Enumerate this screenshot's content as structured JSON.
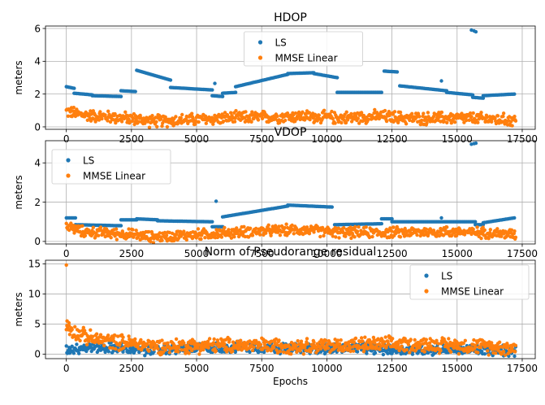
{
  "chart_data": [
    {
      "type": "scatter",
      "title": "HDOP",
      "xlabel": "",
      "ylabel": "meters",
      "xlim": [
        -800,
        18000
      ],
      "ylim": [
        -0.15,
        6.15
      ],
      "xticks": [
        0,
        2500,
        5000,
        7500,
        10000,
        12500,
        15000,
        17500
      ],
      "yticks": [
        0,
        2,
        4,
        6
      ],
      "grid": true,
      "legend": "upper-center",
      "series": [
        {
          "name": "LS",
          "color": "#1f77b4",
          "segments": [
            {
              "x": [
                0,
                300
              ],
              "y": [
                2.45,
                2.35
              ]
            },
            {
              "x": [
                300,
                1000
              ],
              "y": [
                2.05,
                1.95
              ]
            },
            {
              "x": [
                1000,
                2100
              ],
              "y": [
                1.9,
                1.85
              ]
            },
            {
              "x": [
                2100,
                2650
              ],
              "y": [
                2.2,
                2.15
              ]
            },
            {
              "x": [
                2700,
                4000
              ],
              "y": [
                3.45,
                2.85
              ]
            },
            {
              "x": [
                4000,
                5600
              ],
              "y": [
                2.4,
                2.25
              ]
            },
            {
              "x": [
                5600,
                6000
              ],
              "y": [
                1.9,
                1.85
              ]
            },
            {
              "x": [
                6000,
                6500
              ],
              "y": [
                2.05,
                2.1
              ]
            },
            {
              "x": [
                6500,
                8500
              ],
              "y": [
                2.45,
                3.2
              ]
            },
            {
              "x": [
                8500,
                9500
              ],
              "y": [
                3.25,
                3.3
              ]
            },
            {
              "x": [
                9500,
                10400
              ],
              "y": [
                3.25,
                3.0
              ]
            },
            {
              "x": [
                10400,
                12100
              ],
              "y": [
                2.1,
                2.1
              ]
            },
            {
              "x": [
                12200,
                12700
              ],
              "y": [
                3.4,
                3.35
              ]
            },
            {
              "x": [
                12800,
                14600
              ],
              "y": [
                2.5,
                2.2
              ]
            },
            {
              "x": [
                14600,
                15600
              ],
              "y": [
                2.1,
                1.95
              ]
            },
            {
              "x": [
                15600,
                16000
              ],
              "y": [
                1.8,
                1.75
              ]
            },
            {
              "x": [
                16000,
                17200
              ],
              "y": [
                1.9,
                2.0
              ]
            }
          ],
          "points": [
            {
              "x": 5700,
              "y": 2.65
            },
            {
              "x": 14400,
              "y": 2.8
            },
            {
              "x": 15550,
              "y": 5.9
            },
            {
              "x": 15650,
              "y": 5.85
            },
            {
              "x": 15720,
              "y": 5.8
            }
          ]
        },
        {
          "name": "MMSE Linear",
          "color": "#ff7f0e",
          "noisy": {
            "x_start": 0,
            "x_end": 17250,
            "base": [
              [
                0,
                0.95
              ],
              [
                500,
                0.75
              ],
              [
                2500,
                0.5
              ],
              [
                3300,
                0.35
              ],
              [
                5000,
                0.45
              ],
              [
                6500,
                0.55
              ],
              [
                9000,
                0.65
              ],
              [
                10500,
                0.55
              ],
              [
                12000,
                0.65
              ],
              [
                13500,
                0.5
              ],
              [
                15000,
                0.55
              ],
              [
                16500,
                0.45
              ],
              [
                17250,
                0.4
              ]
            ],
            "spread": 0.3
          }
        }
      ]
    },
    {
      "type": "scatter",
      "title": "VDOP",
      "xlabel": "",
      "ylabel": "meters",
      "xlim": [
        -800,
        18000
      ],
      "ylim": [
        -0.13,
        5.13
      ],
      "xticks": [
        0,
        2500,
        5000,
        7500,
        10000,
        12500,
        15000,
        17500
      ],
      "yticks": [
        0,
        2,
        4
      ],
      "grid": true,
      "legend": "upper-left",
      "series": [
        {
          "name": "LS",
          "color": "#1f77b4",
          "segments": [
            {
              "x": [
                0,
                350
              ],
              "y": [
                1.2,
                1.2
              ]
            },
            {
              "x": [
                350,
                2100
              ],
              "y": [
                0.85,
                0.8
              ]
            },
            {
              "x": [
                2100,
                2700
              ],
              "y": [
                1.1,
                1.1
              ]
            },
            {
              "x": [
                2700,
                3500
              ],
              "y": [
                1.15,
                1.1
              ]
            },
            {
              "x": [
                3500,
                5600
              ],
              "y": [
                1.05,
                1.0
              ]
            },
            {
              "x": [
                5600,
                6000
              ],
              "y": [
                0.75,
                0.75
              ]
            },
            {
              "x": [
                6000,
                8500
              ],
              "y": [
                1.25,
                1.8
              ]
            },
            {
              "x": [
                8500,
                10200
              ],
              "y": [
                1.85,
                1.75
              ]
            },
            {
              "x": [
                10300,
                12100
              ],
              "y": [
                0.85,
                0.9
              ]
            },
            {
              "x": [
                12100,
                12500
              ],
              "y": [
                1.15,
                1.15
              ]
            },
            {
              "x": [
                12500,
                15700
              ],
              "y": [
                1.0,
                1.0
              ]
            },
            {
              "x": [
                15700,
                16000
              ],
              "y": [
                0.85,
                0.85
              ]
            },
            {
              "x": [
                16000,
                17200
              ],
              "y": [
                0.95,
                1.2
              ]
            }
          ],
          "points": [
            {
              "x": 5750,
              "y": 2.05
            },
            {
              "x": 14400,
              "y": 1.2
            },
            {
              "x": 15550,
              "y": 4.95
            },
            {
              "x": 15650,
              "y": 4.98
            },
            {
              "x": 15720,
              "y": 5.0
            }
          ]
        },
        {
          "name": "MMSE Linear",
          "color": "#ff7f0e",
          "noisy": {
            "x_start": 0,
            "x_end": 17250,
            "base": [
              [
                0,
                0.8
              ],
              [
                600,
                0.5
              ],
              [
                2500,
                0.35
              ],
              [
                3300,
                0.22
              ],
              [
                5000,
                0.35
              ],
              [
                7000,
                0.5
              ],
              [
                9000,
                0.6
              ],
              [
                10500,
                0.45
              ],
              [
                12500,
                0.45
              ],
              [
                14500,
                0.5
              ],
              [
                16000,
                0.45
              ],
              [
                17250,
                0.35
              ]
            ],
            "spread": 0.22
          }
        }
      ]
    },
    {
      "type": "scatter",
      "title": "Norm of Pseudorange residual",
      "xlabel": "Epochs",
      "ylabel": "meters",
      "xlim": [
        -800,
        18000
      ],
      "ylim": [
        -0.75,
        15.6
      ],
      "xticks": [
        0,
        2500,
        5000,
        7500,
        10000,
        12500,
        15000,
        17500
      ],
      "yticks": [
        0,
        5,
        10,
        15
      ],
      "grid": true,
      "legend": "upper-right",
      "series": [
        {
          "name": "LS",
          "color": "#1f77b4",
          "noisy": {
            "x_start": 0,
            "x_end": 17250,
            "base": [
              [
                0,
                0.8
              ],
              [
                1000,
                1.2
              ],
              [
                2000,
                1.0
              ],
              [
                3000,
                0.6
              ],
              [
                5000,
                1.0
              ],
              [
                7000,
                1.2
              ],
              [
                9000,
                0.9
              ],
              [
                11000,
                1.0
              ],
              [
                13000,
                0.7
              ],
              [
                15000,
                0.8
              ],
              [
                17250,
                0.5
              ]
            ],
            "spread": 0.7
          }
        },
        {
          "name": "MMSE Linear",
          "color": "#ff7f0e",
          "noisy": {
            "x_start": 0,
            "x_end": 17250,
            "base": [
              [
                0,
                4.5
              ],
              [
                400,
                3.5
              ],
              [
                1000,
                2.5
              ],
              [
                2500,
                1.8
              ],
              [
                3500,
                1.3
              ],
              [
                6000,
                1.5
              ],
              [
                8000,
                1.4
              ],
              [
                10000,
                1.4
              ],
              [
                12000,
                1.6
              ],
              [
                14000,
                1.6
              ],
              [
                16000,
                1.3
              ],
              [
                17250,
                1.0
              ]
            ],
            "spread": 1.0
          },
          "points": [
            {
              "x": 0,
              "y": 14.8
            },
            {
              "x": 30,
              "y": 5.5
            },
            {
              "x": 100,
              "y": 5.2
            }
          ]
        }
      ]
    }
  ]
}
